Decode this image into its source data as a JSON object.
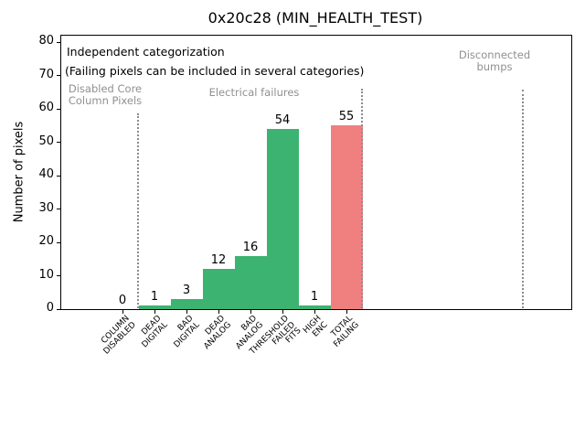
{
  "chart_data": {
    "type": "bar",
    "title": "0x20c28 (MIN_HEALTH_TEST)",
    "ylabel": "Number of pixels",
    "xlabel": "",
    "categories": [
      "COLUMN\nDISABLED",
      "DEAD\nDIGITAL",
      "BAD\nDIGITAL",
      "DEAD\nANALOG",
      "BAD\nANALOG",
      "THRESHOLD\nFAILED\nFITS",
      "HIGH\nENC",
      "TOTAL\nFAILING"
    ],
    "values": [
      0,
      1,
      3,
      12,
      16,
      54,
      1,
      55
    ],
    "bar_colors": [
      "#3cb371",
      "#3cb371",
      "#3cb371",
      "#3cb371",
      "#3cb371",
      "#3cb371",
      "#3cb371",
      "#f08080"
    ],
    "ylim": [
      0,
      82
    ],
    "yticks": [
      0,
      10,
      20,
      30,
      40,
      50,
      60,
      70,
      80
    ],
    "grid": false,
    "legend_position": "none",
    "annotations": [
      "Independent categorization",
      "(Failing pixels can be included in several categories)"
    ],
    "region_labels": [
      {
        "text": "Disabled Core\nColumn Pixels"
      },
      {
        "text": "Electrical failures"
      },
      {
        "text": "Disconnected\nbumps"
      }
    ],
    "colors": {
      "bar_green": "#3cb371",
      "bar_red": "#f08080",
      "separator_line": "#8c8c8c",
      "region_label_gray": "#909090"
    }
  }
}
